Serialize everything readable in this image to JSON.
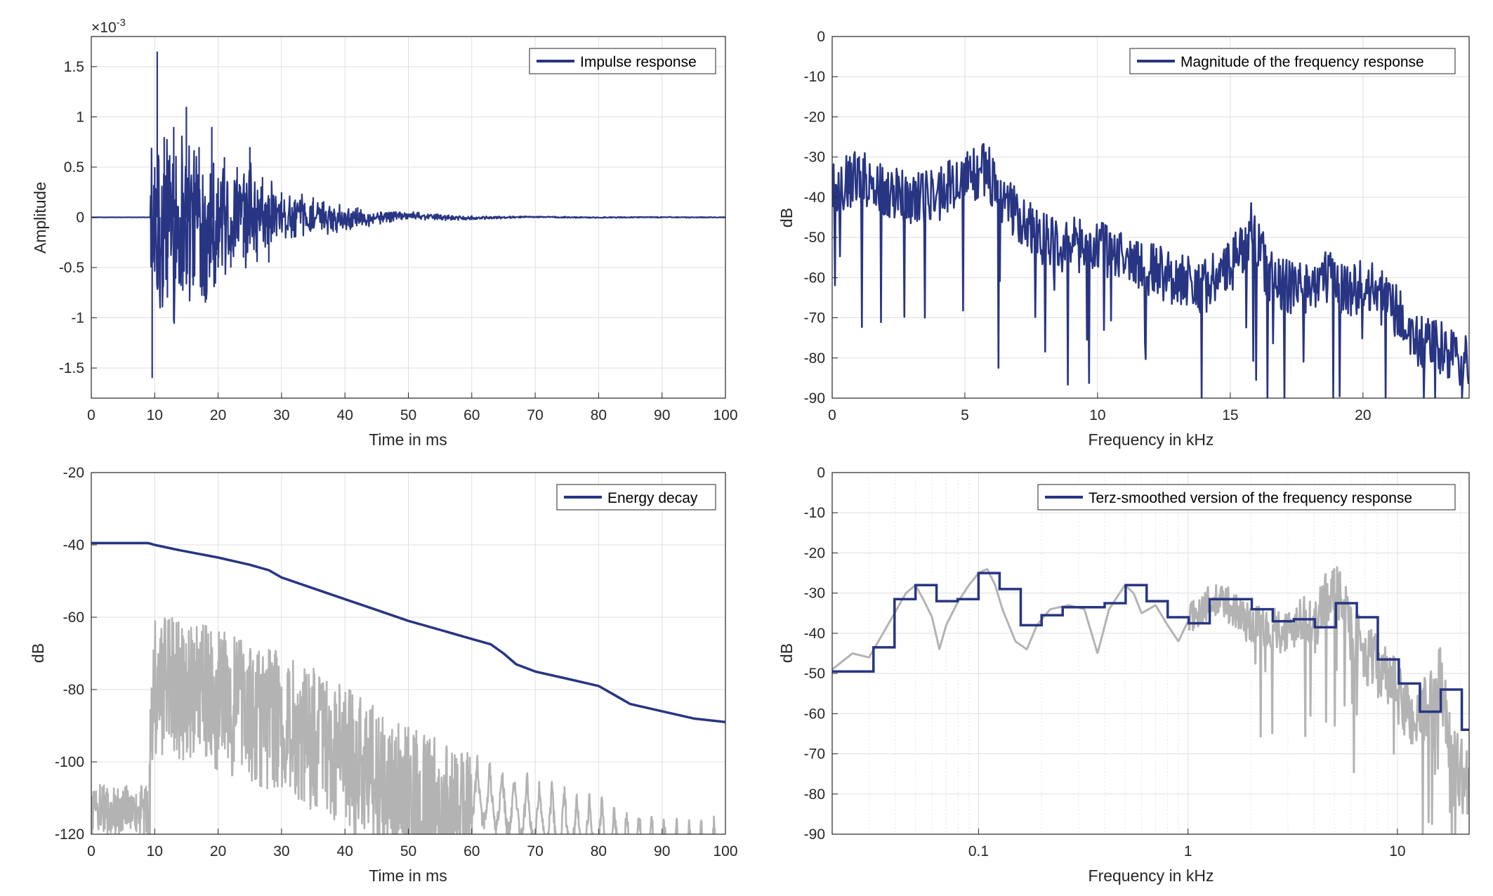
{
  "colors": {
    "primary": "#283583",
    "secondary": "#b3b3b3"
  },
  "chart_data": [
    {
      "id": "impulse",
      "type": "line",
      "title": "",
      "xlabel": "Time in ms",
      "ylabel": "Amplitude",
      "exponent_label": "×10",
      "exponent_power": "-3",
      "xlim": [
        0,
        100
      ],
      "ylim": [
        -1.8,
        1.8
      ],
      "xticks": [
        0,
        10,
        20,
        30,
        40,
        50,
        60,
        70,
        80,
        90,
        100
      ],
      "yticks": [
        -1.5,
        -1,
        -0.5,
        0,
        0.5,
        1,
        1.5
      ],
      "ytick_labels": [
        "-1.5",
        "-1",
        "-0.5",
        "0",
        "0.5",
        "1",
        "1.5"
      ],
      "grid": true,
      "legend_position": "top-right",
      "series": [
        {
          "name": "Impulse response",
          "color": "#283583",
          "keypoints": [
            [
              0,
              0
            ],
            [
              9.2,
              0
            ],
            [
              9.4,
              -0.45
            ],
            [
              9.6,
              -1.6
            ],
            [
              10.0,
              0.5
            ],
            [
              10.4,
              1.65
            ],
            [
              10.8,
              -0.7
            ],
            [
              11.5,
              0.8
            ],
            [
              12,
              -0.8
            ],
            [
              13,
              0.9
            ],
            [
              14,
              -0.6
            ],
            [
              15,
              1.1
            ],
            [
              16,
              -0.6
            ],
            [
              17,
              0.7
            ],
            [
              18,
              -0.85
            ],
            [
              19,
              0.9
            ],
            [
              20,
              -0.5
            ],
            [
              21,
              0.6
            ],
            [
              22,
              -0.5
            ],
            [
              23,
              0.5
            ],
            [
              24,
              -0.4
            ],
            [
              25,
              0.7
            ],
            [
              26,
              -0.35
            ],
            [
              27,
              0.4
            ],
            [
              28,
              -0.45
            ],
            [
              30,
              0.25
            ],
            [
              32,
              -0.2
            ],
            [
              35,
              0.2
            ],
            [
              38,
              -0.12
            ],
            [
              42,
              0.1
            ],
            [
              46,
              -0.05
            ],
            [
              50,
              0.03
            ],
            [
              55,
              -0.02
            ],
            [
              60,
              0.02
            ],
            [
              65,
              0
            ],
            [
              100,
              0
            ]
          ],
          "envelope": [
            [
              9.5,
              1.6
            ],
            [
              15,
              1.1
            ],
            [
              20,
              0.7
            ],
            [
              25,
              0.6
            ],
            [
              30,
              0.3
            ],
            [
              35,
              0.2
            ],
            [
              40,
              0.15
            ],
            [
              45,
              0.08
            ],
            [
              50,
              0.05
            ],
            [
              60,
              0.02
            ],
            [
              70,
              0.008
            ],
            [
              100,
              0.005
            ]
          ]
        }
      ]
    },
    {
      "id": "magnitude",
      "type": "line",
      "title": "",
      "xlabel": "Frequency in kHz",
      "ylabel": "dB",
      "xlim": [
        0,
        24
      ],
      "ylim": [
        -90,
        0
      ],
      "xticks": [
        0,
        5,
        10,
        15,
        20
      ],
      "yticks": [
        0,
        -10,
        -20,
        -30,
        -40,
        -50,
        -60,
        -70,
        -80,
        -90
      ],
      "grid": true,
      "legend_position": "top-right",
      "series": [
        {
          "name": "Magnitude of the frequency response",
          "color": "#283583",
          "trend": [
            [
              0,
              -37
            ],
            [
              1,
              -35
            ],
            [
              2,
              -38
            ],
            [
              3,
              -40
            ],
            [
              4,
              -39
            ],
            [
              5,
              -35
            ],
            [
              5.8,
              -33
            ],
            [
              6.5,
              -42
            ],
            [
              7.5,
              -48
            ],
            [
              8.5,
              -52
            ],
            [
              10,
              -52
            ],
            [
              11,
              -55
            ],
            [
              12,
              -58
            ],
            [
              13,
              -60
            ],
            [
              14,
              -62
            ],
            [
              15,
              -58
            ],
            [
              15.8,
              -48
            ],
            [
              16.5,
              -60
            ],
            [
              17.5,
              -63
            ],
            [
              18.5,
              -60
            ],
            [
              19.5,
              -63
            ],
            [
              20,
              -62
            ],
            [
              21,
              -66
            ],
            [
              22,
              -76
            ],
            [
              23,
              -78
            ],
            [
              24,
              -82
            ]
          ]
        }
      ]
    },
    {
      "id": "energy",
      "type": "line",
      "title": "",
      "xlabel": "Time in ms",
      "ylabel": "dB",
      "xlim": [
        0,
        100
      ],
      "ylim": [
        -120,
        -20
      ],
      "xticks": [
        0,
        10,
        20,
        30,
        40,
        50,
        60,
        70,
        80,
        90,
        100
      ],
      "yticks": [
        -20,
        -40,
        -60,
        -80,
        -100,
        -120
      ],
      "grid": true,
      "legend_position": "top-right",
      "series": [
        {
          "name": "Energy decay",
          "color": "#283583",
          "points": [
            [
              0,
              -39.5
            ],
            [
              9,
              -39.5
            ],
            [
              10,
              -40
            ],
            [
              14,
              -41.5
            ],
            [
              20,
              -43.5
            ],
            [
              25,
              -45.5
            ],
            [
              28,
              -47
            ],
            [
              30,
              -49
            ],
            [
              35,
              -52
            ],
            [
              40,
              -55
            ],
            [
              45,
              -58
            ],
            [
              50,
              -61
            ],
            [
              55,
              -63.5
            ],
            [
              60,
              -66
            ],
            [
              63,
              -67.5
            ],
            [
              65,
              -70
            ],
            [
              67,
              -73
            ],
            [
              70,
              -75
            ],
            [
              75,
              -77
            ],
            [
              80,
              -79
            ],
            [
              85,
              -84
            ],
            [
              90,
              -86
            ],
            [
              95,
              -88
            ],
            [
              100,
              -89
            ]
          ]
        },
        {
          "name": "",
          "color": "#b3b3b3",
          "envelope": [
            [
              0,
              -106
            ],
            [
              9,
              -106
            ],
            [
              9.5,
              -66
            ],
            [
              10,
              -58
            ],
            [
              15,
              -60
            ],
            [
              20,
              -63
            ],
            [
              25,
              -65
            ],
            [
              30,
              -70
            ],
            [
              35,
              -74
            ],
            [
              40,
              -78
            ],
            [
              45,
              -85
            ],
            [
              50,
              -90
            ],
            [
              55,
              -94
            ],
            [
              60,
              -97
            ],
            [
              65,
              -100
            ],
            [
              70,
              -103
            ],
            [
              75,
              -106
            ],
            [
              80,
              -108
            ],
            [
              85,
              -111
            ],
            [
              90,
              -113
            ],
            [
              95,
              -114
            ],
            [
              100,
              -115
            ]
          ]
        }
      ]
    },
    {
      "id": "terz",
      "type": "line",
      "title": "",
      "xlabel": "Frequency in kHz",
      "ylabel": "dB",
      "xscale": "log",
      "xlim": [
        0.02,
        22
      ],
      "ylim": [
        -90,
        0
      ],
      "xticks": [
        0.1,
        1,
        10
      ],
      "xtick_labels": [
        "0.1",
        "1",
        "10"
      ],
      "yticks": [
        0,
        -10,
        -20,
        -30,
        -40,
        -50,
        -60,
        -70,
        -80,
        -90
      ],
      "grid": true,
      "legend_position": "top-right",
      "series": [
        {
          "name": "Terz-smoothed version of the frequency response",
          "color": "#283583",
          "steps": [
            [
              0.02,
              -49.5
            ],
            [
              0.0315,
              -43.5
            ],
            [
              0.0397,
              -31.5
            ],
            [
              0.05,
              -28
            ],
            [
              0.063,
              -32
            ],
            [
              0.0794,
              -31.5
            ],
            [
              0.1,
              -25
            ],
            [
              0.126,
              -29
            ],
            [
              0.159,
              -38
            ],
            [
              0.2,
              -35.5
            ],
            [
              0.252,
              -33.5
            ],
            [
              0.317,
              -33.5
            ],
            [
              0.4,
              -32.5
            ],
            [
              0.504,
              -28
            ],
            [
              0.635,
              -32
            ],
            [
              0.8,
              -36
            ],
            [
              1.008,
              -37.5
            ],
            [
              1.27,
              -31.5
            ],
            [
              1.6,
              -31.5
            ],
            [
              2.016,
              -34
            ],
            [
              2.54,
              -37
            ],
            [
              3.2,
              -36.5
            ],
            [
              4.03,
              -38.5
            ],
            [
              5.08,
              -32.5
            ],
            [
              6.4,
              -36
            ],
            [
              8.06,
              -46.5
            ],
            [
              10.16,
              -52.5
            ],
            [
              12.8,
              -59.5
            ],
            [
              16.1,
              -54
            ],
            [
              20.3,
              -64
            ],
            [
              22,
              -64
            ]
          ]
        },
        {
          "name": "",
          "color": "#b3b3b3",
          "trend": [
            [
              0.02,
              -49
            ],
            [
              0.025,
              -45
            ],
            [
              0.03,
              -46
            ],
            [
              0.035,
              -40
            ],
            [
              0.045,
              -30
            ],
            [
              0.05,
              -28
            ],
            [
              0.055,
              -32
            ],
            [
              0.06,
              -36
            ],
            [
              0.065,
              -44
            ],
            [
              0.07,
              -38
            ],
            [
              0.08,
              -32
            ],
            [
              0.09,
              -28
            ],
            [
              0.1,
              -25
            ],
            [
              0.11,
              -24
            ],
            [
              0.12,
              -28
            ],
            [
              0.13,
              -34
            ],
            [
              0.15,
              -42
            ],
            [
              0.17,
              -44
            ],
            [
              0.19,
              -38
            ],
            [
              0.22,
              -34
            ],
            [
              0.27,
              -33
            ],
            [
              0.32,
              -34
            ],
            [
              0.37,
              -45
            ],
            [
              0.42,
              -34
            ],
            [
              0.5,
              -28
            ],
            [
              0.55,
              -30
            ],
            [
              0.6,
              -35
            ],
            [
              0.7,
              -33
            ],
            [
              0.8,
              -38
            ],
            [
              0.9,
              -42
            ],
            [
              1.0,
              -37
            ],
            [
              1.2,
              -33
            ],
            [
              1.5,
              -32
            ],
            [
              2.0,
              -38
            ],
            [
              2.5,
              -38
            ],
            [
              3.0,
              -40
            ],
            [
              3.5,
              -35
            ],
            [
              4.0,
              -40
            ],
            [
              4.5,
              -31
            ],
            [
              5.0,
              -28
            ],
            [
              5.5,
              -33
            ],
            [
              6.0,
              -40
            ],
            [
              7.0,
              -45
            ],
            [
              8.0,
              -48
            ],
            [
              10.0,
              -55
            ],
            [
              12.0,
              -62
            ],
            [
              14.0,
              -58
            ],
            [
              16.0,
              -52
            ],
            [
              18.0,
              -68
            ],
            [
              20.0,
              -75
            ],
            [
              22,
              -78
            ]
          ]
        }
      ]
    }
  ],
  "legend_labels": {
    "impulse": "Impulse response",
    "magnitude": "Magnitude of the frequency response",
    "energy": "Energy decay",
    "terz": "Terz-smoothed version of the frequency response"
  },
  "axis_labels": {
    "impulse_x": "Time in ms",
    "impulse_y": "Amplitude",
    "magnitude_x": "Frequency in kHz",
    "magnitude_y": "dB",
    "energy_x": "Time in ms",
    "energy_y": "dB",
    "terz_x": "Frequency in kHz",
    "terz_y": "dB",
    "impulse_exp": "×10",
    "impulse_exp_pow": "-3"
  }
}
